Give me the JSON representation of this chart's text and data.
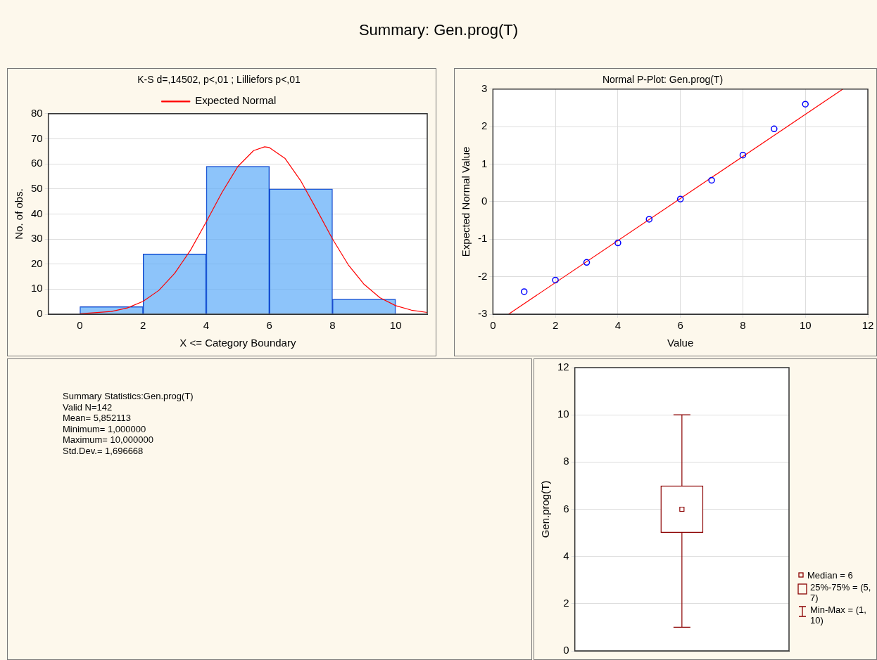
{
  "chart_data": [
    {
      "type": "other",
      "title": "Summary: Gen.prog(T)"
    },
    {
      "type": "histogram",
      "title": "K-S d=,14502, p<,01 ; Lilliefors p<,01",
      "xlabel": "X <= Category Boundary",
      "ylabel": "No. of obs.",
      "bins": [
        0,
        2,
        4,
        6,
        8,
        10
      ],
      "xlim": [
        -1,
        11
      ],
      "xticks": [
        0,
        2,
        4,
        6,
        8,
        10
      ],
      "ylim": [
        0,
        80
      ],
      "yticks": [
        0,
        10,
        20,
        30,
        40,
        50,
        60,
        70,
        80
      ],
      "grid": "y",
      "legend": "top",
      "series": [
        {
          "type": "histogram",
          "color": "#5aa9f8",
          "values": [
            3,
            24,
            59,
            50,
            6
          ]
        },
        {
          "type": "line",
          "name": "Expected Normal",
          "color": "#ff0000",
          "x": [
            0,
            1,
            1.5,
            2,
            2.5,
            3,
            3.5,
            4,
            4.5,
            5,
            5.5,
            5.85,
            6,
            6.5,
            7,
            7.5,
            8,
            8.5,
            9,
            9.5,
            10,
            10.5,
            11
          ],
          "values": [
            0.2,
            1.1,
            2.5,
            5.1,
            9.5,
            16.3,
            25.5,
            36.8,
            48.6,
            58.9,
            65.3,
            66.8,
            66.5,
            62.1,
            53.1,
            41.7,
            30,
            19.7,
            11.9,
            6.6,
            3.4,
            1.6,
            0.7
          ]
        }
      ]
    },
    {
      "type": "scatter",
      "title": "Normal P-Plot: Gen.prog(T)",
      "xlabel": "Value",
      "ylabel": "Expected Normal Value",
      "xlim": [
        0,
        12
      ],
      "xticks": [
        0,
        2,
        4,
        6,
        8,
        10,
        12
      ],
      "ylim": [
        -3,
        3
      ],
      "yticks": [
        -3,
        -2,
        -1,
        0,
        1,
        2,
        3
      ],
      "grid": true,
      "marker": "circle",
      "series": [
        {
          "type": "scatter",
          "color": "#0000ff",
          "x": [
            1,
            2,
            3,
            4,
            5,
            6,
            7,
            8,
            9,
            10
          ],
          "values": [
            -2.4,
            -2.09,
            -1.62,
            -1.1,
            -0.47,
            0.07,
            0.57,
            1.24,
            1.94,
            2.6
          ]
        },
        {
          "type": "line",
          "color": "#ff0000",
          "marker": "none",
          "x": [
            0.5,
            11.2
          ],
          "values": [
            -3,
            3
          ]
        }
      ]
    },
    {
      "type": "other",
      "title": "Summary Statistics:Gen.prog(T)",
      "annotations": [
        "Valid N=142",
        "Mean=  5,852113",
        "Minimum=  1,000000",
        "Maximum=  10,000000",
        "Std.Dev.=  1,696668"
      ]
    },
    {
      "type": "box",
      "ylabel": "Gen.prog(T)",
      "categories": [
        null
      ],
      "color": "#8b0000",
      "boxes": [
        {
          "low": 1,
          "q1": 5,
          "median": 6,
          "q3": 7,
          "high": 10
        }
      ],
      "ylim": [
        0,
        12
      ],
      "yticks": [
        0,
        2,
        4,
        6,
        8,
        10,
        12
      ],
      "grid": "y",
      "annotations": [
        "Median = 6",
        "25%-75% = (5, 7)",
        "Min-Max = (1, 10)"
      ]
    }
  ]
}
